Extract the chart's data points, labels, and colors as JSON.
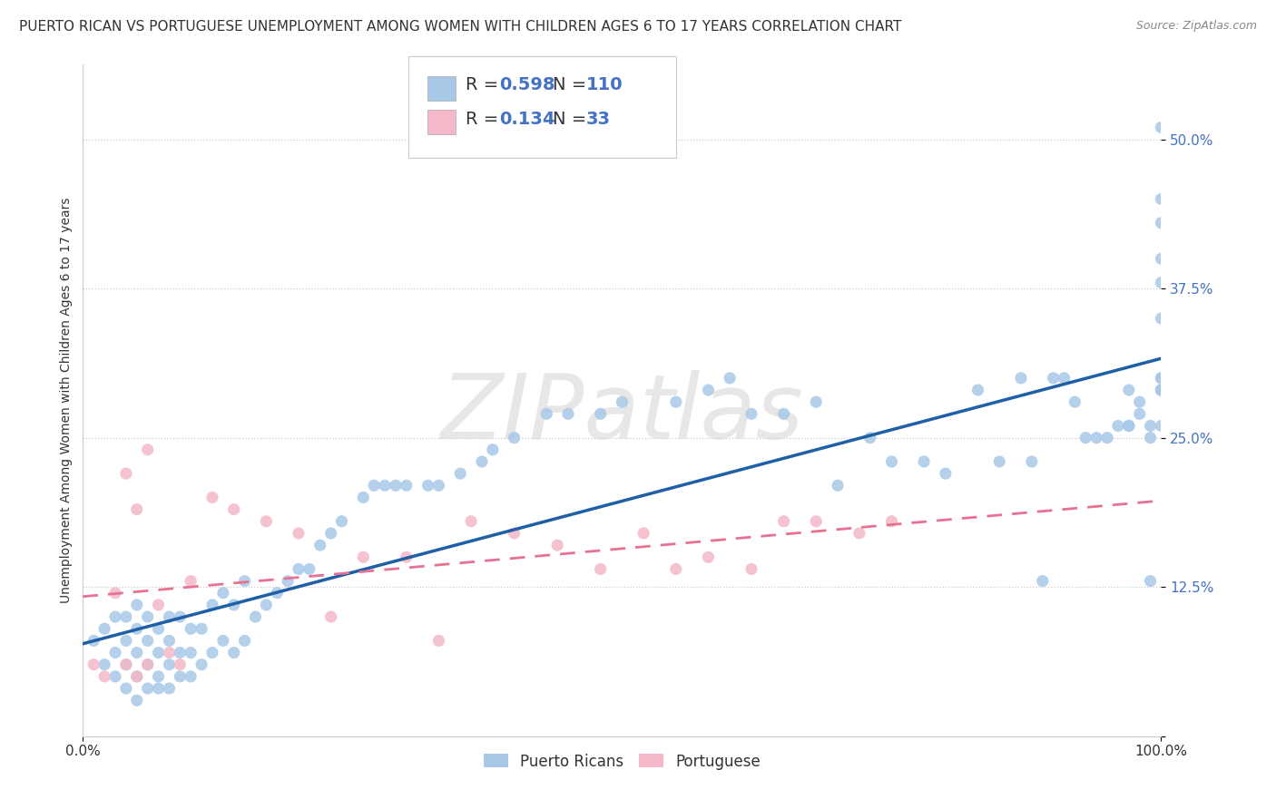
{
  "title": "PUERTO RICAN VS PORTUGUESE UNEMPLOYMENT AMONG WOMEN WITH CHILDREN AGES 6 TO 17 YEARS CORRELATION CHART",
  "source": "Source: ZipAtlas.com",
  "ylabel": "Unemployment Among Women with Children Ages 6 to 17 years",
  "xlim": [
    0,
    1.0
  ],
  "ylim": [
    0,
    0.5625
  ],
  "ytick_vals": [
    0.0,
    0.125,
    0.25,
    0.375,
    0.5
  ],
  "ytick_labels": [
    "",
    "12.5%",
    "25.0%",
    "37.5%",
    "50.0%"
  ],
  "xtick_vals": [
    0.0,
    1.0
  ],
  "xtick_labels": [
    "0.0%",
    "100.0%"
  ],
  "ytick_color": "#4472c4",
  "xtick_color": "#333333",
  "pr_R": 0.598,
  "pr_N": 110,
  "pt_R": 0.134,
  "pt_N": 33,
  "pr_color": "#a8c8e8",
  "pt_color": "#f4b8c8",
  "pr_line_color": "#1f5fa6",
  "pt_line_color": "#e87090",
  "background_color": "#ffffff",
  "grid_color": "#cccccc",
  "watermark_color": "#d8d8d8",
  "title_color": "#333333",
  "source_color": "#888888",
  "legend_text_color": "#333333",
  "legend_value_color": "#4472c4",
  "title_fontsize": 11,
  "axis_label_fontsize": 10,
  "tick_fontsize": 11,
  "legend_fontsize": 14,
  "pr_x": [
    0.01,
    0.02,
    0.02,
    0.03,
    0.03,
    0.03,
    0.04,
    0.04,
    0.04,
    0.04,
    0.05,
    0.05,
    0.05,
    0.05,
    0.05,
    0.06,
    0.06,
    0.06,
    0.06,
    0.07,
    0.07,
    0.07,
    0.07,
    0.08,
    0.08,
    0.08,
    0.08,
    0.09,
    0.09,
    0.09,
    0.1,
    0.1,
    0.1,
    0.11,
    0.11,
    0.12,
    0.12,
    0.13,
    0.13,
    0.14,
    0.14,
    0.15,
    0.15,
    0.16,
    0.17,
    0.18,
    0.19,
    0.2,
    0.21,
    0.22,
    0.23,
    0.24,
    0.26,
    0.27,
    0.28,
    0.29,
    0.3,
    0.32,
    0.33,
    0.35,
    0.37,
    0.38,
    0.4,
    0.43,
    0.45,
    0.48,
    0.5,
    0.55,
    0.58,
    0.6,
    0.62,
    0.65,
    0.68,
    0.7,
    0.73,
    0.75,
    0.78,
    0.8,
    0.83,
    0.85,
    0.87,
    0.88,
    0.89,
    0.9,
    0.91,
    0.92,
    0.93,
    0.94,
    0.95,
    0.96,
    0.97,
    0.97,
    0.97,
    0.98,
    0.98,
    0.99,
    0.99,
    0.99,
    1.0,
    1.0,
    1.0,
    1.0,
    1.0,
    1.0,
    1.0,
    1.0,
    1.0,
    1.0,
    1.0,
    1.0
  ],
  "pr_y": [
    0.08,
    0.06,
    0.09,
    0.05,
    0.07,
    0.1,
    0.04,
    0.06,
    0.08,
    0.1,
    0.03,
    0.05,
    0.07,
    0.09,
    0.11,
    0.04,
    0.06,
    0.08,
    0.1,
    0.04,
    0.05,
    0.07,
    0.09,
    0.04,
    0.06,
    0.08,
    0.1,
    0.05,
    0.07,
    0.1,
    0.05,
    0.07,
    0.09,
    0.06,
    0.09,
    0.07,
    0.11,
    0.08,
    0.12,
    0.07,
    0.11,
    0.08,
    0.13,
    0.1,
    0.11,
    0.12,
    0.13,
    0.14,
    0.14,
    0.16,
    0.17,
    0.18,
    0.2,
    0.21,
    0.21,
    0.21,
    0.21,
    0.21,
    0.21,
    0.22,
    0.23,
    0.24,
    0.25,
    0.27,
    0.27,
    0.27,
    0.28,
    0.28,
    0.29,
    0.3,
    0.27,
    0.27,
    0.28,
    0.21,
    0.25,
    0.23,
    0.23,
    0.22,
    0.29,
    0.23,
    0.3,
    0.23,
    0.13,
    0.3,
    0.3,
    0.28,
    0.25,
    0.25,
    0.25,
    0.26,
    0.26,
    0.29,
    0.26,
    0.28,
    0.27,
    0.25,
    0.13,
    0.26,
    0.29,
    0.26,
    0.35,
    0.38,
    0.43,
    0.29,
    0.3,
    0.45,
    0.51,
    0.3,
    0.29,
    0.4
  ],
  "pt_x": [
    0.01,
    0.02,
    0.03,
    0.04,
    0.04,
    0.05,
    0.05,
    0.06,
    0.06,
    0.07,
    0.08,
    0.09,
    0.1,
    0.12,
    0.14,
    0.17,
    0.2,
    0.23,
    0.26,
    0.3,
    0.33,
    0.36,
    0.4,
    0.44,
    0.48,
    0.52,
    0.55,
    0.58,
    0.62,
    0.65,
    0.68,
    0.72,
    0.75
  ],
  "pt_y": [
    0.06,
    0.05,
    0.12,
    0.06,
    0.22,
    0.05,
    0.19,
    0.06,
    0.24,
    0.11,
    0.07,
    0.06,
    0.13,
    0.2,
    0.19,
    0.18,
    0.17,
    0.1,
    0.15,
    0.15,
    0.08,
    0.18,
    0.17,
    0.16,
    0.14,
    0.17,
    0.14,
    0.15,
    0.14,
    0.18,
    0.18,
    0.17,
    0.18
  ]
}
